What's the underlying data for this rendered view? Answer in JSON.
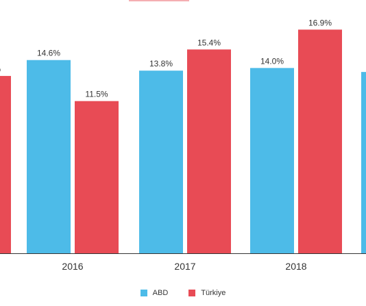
{
  "colors": {
    "ABD": "#4dbbe8",
    "Turkiye": "#e84b55",
    "axis": "#333333",
    "label": "#333333"
  },
  "chart_data": {
    "type": "bar",
    "categories": [
      "",
      "2016",
      "2017",
      "2018",
      ""
    ],
    "series": [
      {
        "name": "ABD",
        "values": [
          null,
          14.6,
          13.8,
          14.0,
          null
        ]
      },
      {
        "name": "Türkiye",
        "values": [
          null,
          11.5,
          15.4,
          16.9,
          null
        ]
      }
    ],
    "partial_left_turkiye_value": 13.4,
    "partial_right_abd_value": 13.7,
    "value_suffix": "%",
    "ylim": [
      0,
      18
    ],
    "grid": false,
    "legend_position": "bottom-center"
  },
  "legend": {
    "items": [
      {
        "label": "ABD",
        "color": "#4dbbe8"
      },
      {
        "label": "Türkiye",
        "color": "#e84b55"
      }
    ]
  }
}
